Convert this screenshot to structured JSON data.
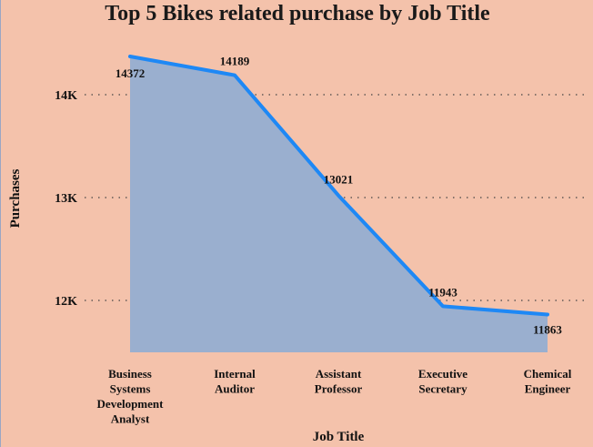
{
  "chart_data": {
    "type": "area",
    "title": "Top 5 Bikes related purchase by Job Title",
    "xlabel": "Job Title",
    "ylabel": "Purchases",
    "categories": [
      "Business Systems Development Analyst",
      "Internal Auditor",
      "Assistant Professor",
      "Executive Secretary",
      "Chemical Engineer"
    ],
    "category_lines": [
      [
        "Business",
        "Systems",
        "Development",
        "Analyst"
      ],
      [
        "Internal",
        "Auditor"
      ],
      [
        "Assistant",
        "Professor"
      ],
      [
        "Executive",
        "Secretary"
      ],
      [
        "Chemical",
        "Engineer"
      ]
    ],
    "values": [
      14372,
      14189,
      13021,
      11943,
      11863
    ],
    "data_labels": [
      "14372",
      "14189",
      "13021",
      "11943",
      "11863"
    ],
    "y_ticks": [
      {
        "value": 12000,
        "label": "12K"
      },
      {
        "value": 13000,
        "label": "13K"
      },
      {
        "value": 14000,
        "label": "14K"
      }
    ],
    "ylim": [
      11500,
      14600
    ],
    "grid": true,
    "colors": {
      "line": "#1e88f5",
      "area": "#9aafcf",
      "background": "#f4c2ab",
      "grid": "#444444"
    }
  }
}
